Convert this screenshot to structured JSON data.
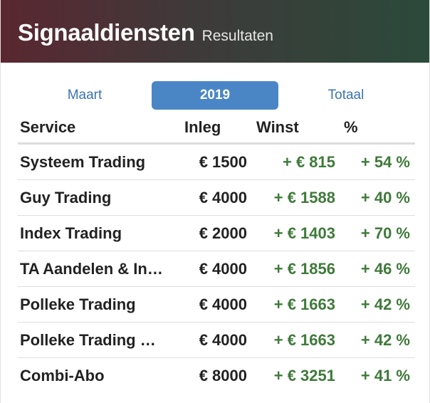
{
  "header": {
    "title": "Signaaldiensten",
    "subtitle": "Resultaten"
  },
  "tabs": [
    {
      "label": "Maart",
      "active": false
    },
    {
      "label": "2019",
      "active": true
    },
    {
      "label": "Totaal",
      "active": false
    }
  ],
  "table": {
    "columns": [
      "Service",
      "Inleg",
      "Winst",
      "%"
    ],
    "rows": [
      {
        "service": "Systeem Trading",
        "inleg": "€ 1500",
        "winst": "+ € 815",
        "pct": "+ 54 %"
      },
      {
        "service": "Guy Trading",
        "inleg": "€ 4000",
        "winst": "+ € 1588",
        "pct": "+ 40 %"
      },
      {
        "service": "Index Trading",
        "inleg": "€ 2000",
        "winst": "+ € 1403",
        "pct": "+ 70 %"
      },
      {
        "service": "TA Aandelen & In…",
        "inleg": "€ 4000",
        "winst": "+ € 1856",
        "pct": "+ 46 %"
      },
      {
        "service": "Polleke Trading",
        "inleg": "€ 4000",
        "winst": "+ € 1663",
        "pct": "+ 42 %"
      },
      {
        "service": "Polleke Trading …",
        "inleg": "€ 4000",
        "winst": "+ € 1663",
        "pct": "+ 42 %"
      },
      {
        "service": "Combi-Abo",
        "inleg": "€ 8000",
        "winst": "+ € 3251",
        "pct": "+ 41 %"
      }
    ]
  },
  "colors": {
    "accent": "#4a86c5",
    "link": "#3a73b3",
    "positive": "#3f7a3a"
  }
}
